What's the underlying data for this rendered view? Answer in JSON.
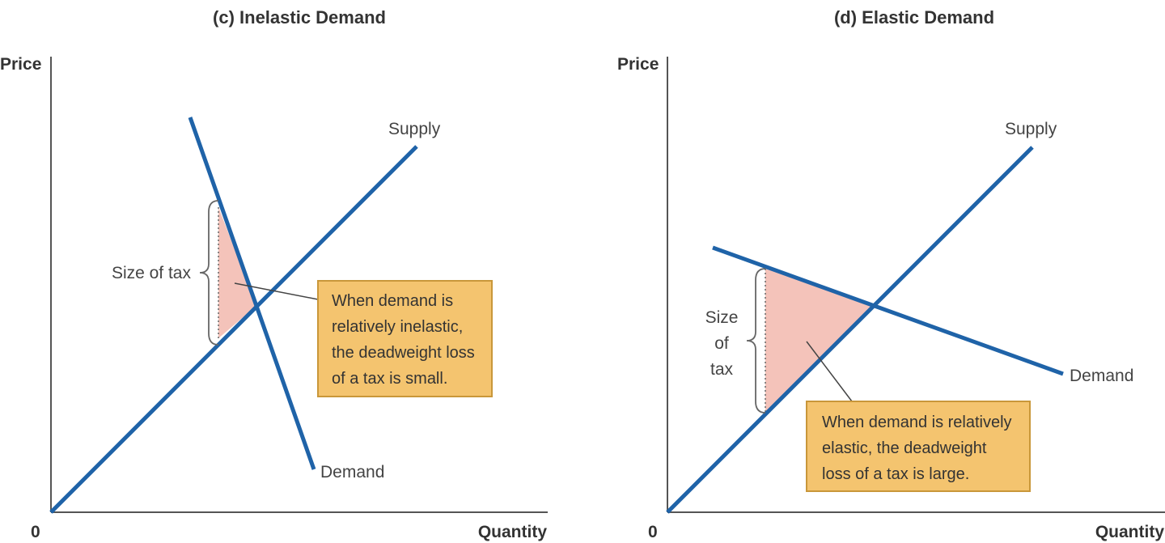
{
  "panels": [
    {
      "id": "inelastic",
      "title": "(c) Inelastic Demand",
      "y_axis_label": "Price",
      "x_axis_label": "Quantity",
      "origin_label": "0",
      "supply_label": "Supply",
      "demand_label": "Demand",
      "tax_label_lines": [
        "Size of tax"
      ],
      "note_lines": [
        "When demand is",
        "relatively inelastic,",
        "the deadweight loss",
        "of a tax is small."
      ]
    },
    {
      "id": "elastic",
      "title": "(d) Elastic Demand",
      "y_axis_label": "Price",
      "x_axis_label": "Quantity",
      "origin_label": "0",
      "supply_label": "Supply",
      "demand_label": "Demand",
      "tax_label_lines": [
        "Size",
        "of",
        "tax"
      ],
      "note_lines": [
        "When demand is relatively",
        "elastic, the deadweight",
        "loss of a tax is large."
      ]
    }
  ],
  "colors": {
    "curve": "#1f63a8",
    "deadweight_loss": "#f4c3ba",
    "note_fill": "#f4c46f",
    "note_border": "#c9973a"
  }
}
